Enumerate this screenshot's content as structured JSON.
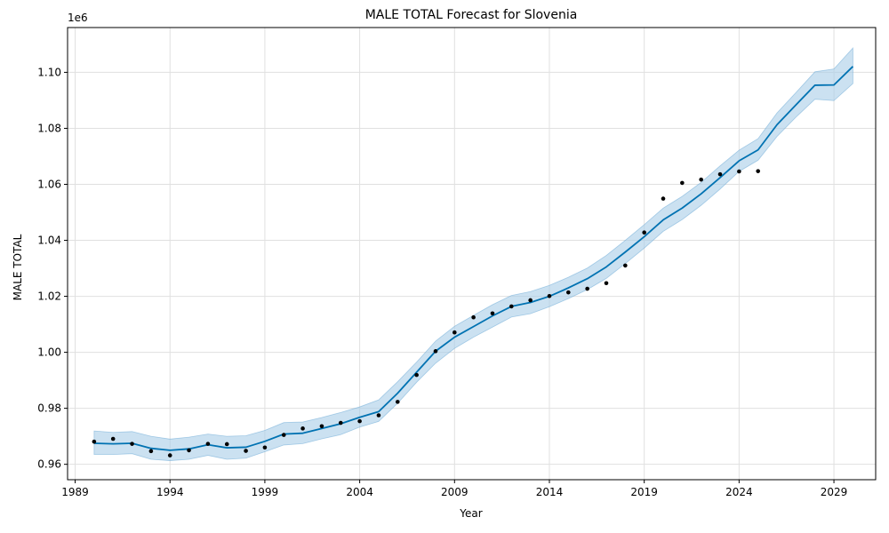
{
  "chart_data": {
    "type": "line",
    "title": "MALE TOTAL Forecast for Slovenia",
    "xlabel": "Year",
    "ylabel": "MALE TOTAL",
    "y_offset_label": "1e6",
    "xlim": [
      1988.6,
      2031.2
    ],
    "ylim": [
      954500,
      1116000
    ],
    "x_ticks": [
      1989,
      1994,
      1999,
      2004,
      2009,
      2014,
      2019,
      2024,
      2029
    ],
    "y_ticks": [
      960000,
      980000,
      1000000,
      1020000,
      1040000,
      1060000,
      1080000,
      1100000
    ],
    "y_tick_labels": [
      "0.96",
      "0.98",
      "1.00",
      "1.02",
      "1.04",
      "1.06",
      "1.08",
      "1.10"
    ],
    "grid": true,
    "colors": {
      "forecast": "#0072b2",
      "band": "#a8cde8",
      "actual": "#000000",
      "grid": "#e0e0e0"
    },
    "series": [
      {
        "name": "",
        "kind": "observed-points",
        "x": [
          1990,
          1991,
          1992,
          1993,
          1994,
          1995,
          1996,
          1997,
          1998,
          1999,
          2000,
          2001,
          2002,
          2003,
          2004,
          2005,
          2006,
          2007,
          2008,
          2009,
          2010,
          2011,
          2012,
          2013,
          2014,
          2015,
          2016,
          2017,
          2018,
          2019,
          2020,
          2021,
          2022,
          2023,
          2024,
          2025
        ],
        "y": [
          968100,
          969100,
          967300,
          964700,
          963200,
          965000,
          967300,
          967200,
          964800,
          966000,
          970500,
          972800,
          973600,
          974800,
          975400,
          977500,
          982300,
          991900,
          1000400,
          1007100,
          1012500,
          1013900,
          1016400,
          1018600,
          1020100,
          1021400,
          1022700,
          1024700,
          1031000,
          1042800,
          1054900,
          1060500,
          1061700,
          1063600,
          1064600,
          1064700
        ]
      },
      {
        "name": "",
        "kind": "forecast-line",
        "x": [
          1990,
          1991,
          1992,
          1993,
          1994,
          1995,
          1996,
          1997,
          1998,
          1999,
          2000,
          2001,
          2002,
          2003,
          2004,
          2005,
          2006,
          2007,
          2008,
          2009,
          2010,
          2011,
          2012,
          2013,
          2014,
          2015,
          2016,
          2017,
          2018,
          2019,
          2020,
          2021,
          2022,
          2023,
          2024,
          2025,
          2026,
          2027,
          2028,
          2029,
          2030
        ],
        "y": [
          967500,
          967300,
          967500,
          965700,
          965000,
          965500,
          967000,
          965900,
          966100,
          968200,
          970800,
          971100,
          972800,
          974500,
          976800,
          978800,
          985400,
          992900,
          1000400,
          1005400,
          1009200,
          1013000,
          1016400,
          1017800,
          1020000,
          1023000,
          1026300,
          1030500,
          1035800,
          1041300,
          1047300,
          1051500,
          1056600,
          1062400,
          1068400,
          1072300,
          1081300,
          1088400,
          1095400,
          1095500,
          1102100
        ]
      },
      {
        "name": "",
        "kind": "uncertainty-band",
        "x": [
          1990,
          1991,
          1992,
          1993,
          1994,
          1995,
          1996,
          1997,
          1998,
          1999,
          2000,
          2001,
          2002,
          2003,
          2004,
          2005,
          2006,
          2007,
          2008,
          2009,
          2010,
          2011,
          2012,
          2013,
          2014,
          2015,
          2016,
          2017,
          2018,
          2019,
          2020,
          2021,
          2022,
          2023,
          2024,
          2025,
          2026,
          2027,
          2028,
          2029,
          2030
        ],
        "lower": [
          963500,
          963500,
          963800,
          961800,
          961300,
          961800,
          963200,
          961800,
          962200,
          964500,
          966900,
          967400,
          969100,
          970600,
          973300,
          975300,
          981800,
          989300,
          996100,
          1001400,
          1005400,
          1009000,
          1012600,
          1013800,
          1016300,
          1019200,
          1022400,
          1026400,
          1031700,
          1037200,
          1043200,
          1047400,
          1052500,
          1058300,
          1064600,
          1068600,
          1077100,
          1084000,
          1090400,
          1089900,
          1096000
        ],
        "upper": [
          971900,
          971400,
          971700,
          970000,
          969000,
          969700,
          970800,
          970000,
          970200,
          972100,
          974900,
          975100,
          976700,
          978500,
          980500,
          983000,
          989500,
          996500,
          1004000,
          1009300,
          1013200,
          1017000,
          1020300,
          1021700,
          1023900,
          1026800,
          1030100,
          1034600,
          1040000,
          1045600,
          1051500,
          1055700,
          1060700,
          1066600,
          1072200,
          1076300,
          1085500,
          1092800,
          1100200,
          1101200,
          1108700
        ]
      }
    ]
  }
}
